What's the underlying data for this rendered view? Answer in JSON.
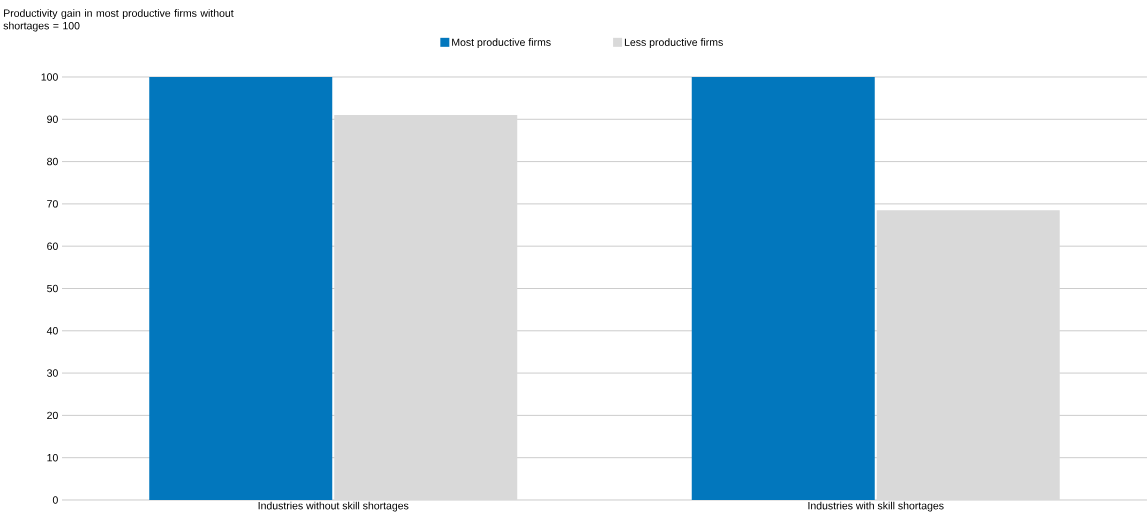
{
  "chart_data": {
    "type": "bar",
    "ylabel": "Productivity gain in most productive firms without shortages = 100",
    "categories": [
      "Industries without skill shortages",
      "Industries with skill shortages"
    ],
    "series": [
      {
        "name": "Most productive firms",
        "color": "#0277bd",
        "values": [
          100,
          100
        ]
      },
      {
        "name": "Less productive firms",
        "color": "#d9d9d9",
        "values": [
          91,
          68.5
        ]
      }
    ],
    "ylim": [
      0,
      100
    ],
    "yticks": [
      0,
      10,
      20,
      30,
      40,
      50,
      60,
      70,
      80,
      90,
      100
    ],
    "grid": "y",
    "legend": "top"
  }
}
